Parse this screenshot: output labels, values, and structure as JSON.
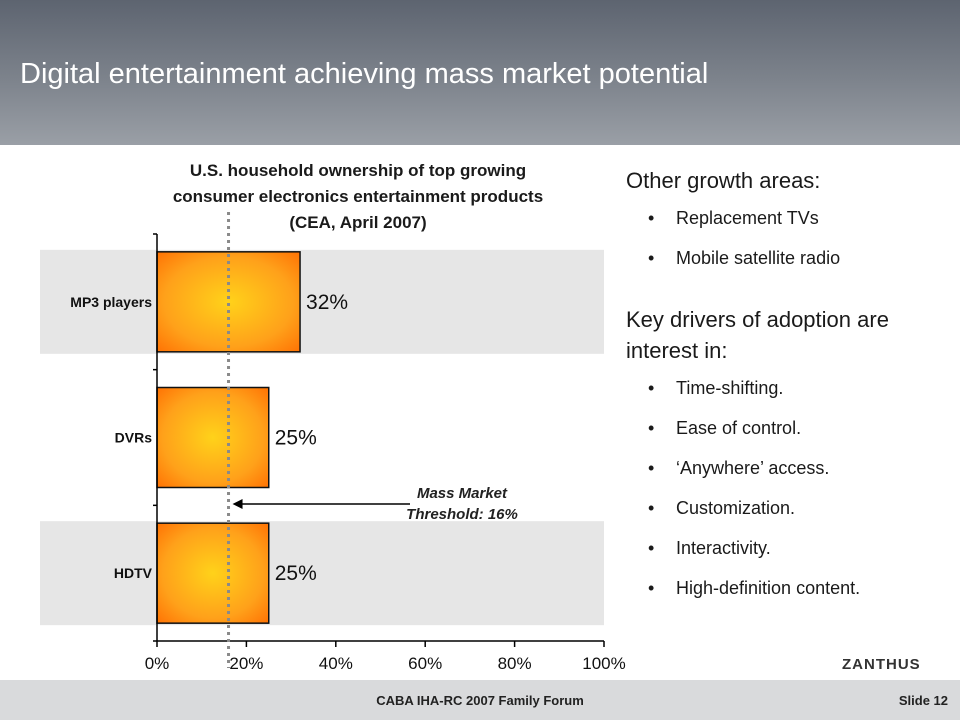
{
  "slide": {
    "title": "Digital entertainment achieving mass market potential",
    "footer_center": "CABA IHA-RC 2007 Family Forum",
    "slide_number": "Slide 12",
    "logo": "ZANTHUS"
  },
  "chart_data": {
    "type": "bar",
    "orientation": "horizontal",
    "title_lines": [
      "U.S. household ownership of top growing",
      "consumer electronics entertainment products",
      "(CEA, April 2007)"
    ],
    "categories": [
      "MP3 players",
      "DVRs",
      "HDTV"
    ],
    "values": [
      32,
      25,
      25
    ],
    "value_labels": [
      "32%",
      "25%",
      "25%"
    ],
    "xlim": [
      0,
      100
    ],
    "x_ticks": [
      0,
      20,
      40,
      60,
      80,
      100
    ],
    "x_tick_labels": [
      "0%",
      "20%",
      "40%",
      "60%",
      "80%",
      "100%"
    ],
    "bar_color_outer": "#ff6a00",
    "bar_color_inner": "#ffd21a",
    "band_color": "#e6e6e6",
    "threshold": {
      "value": 16,
      "label_lines": [
        "Mass Market",
        "Threshold: 16%"
      ]
    }
  },
  "right_panel": {
    "heading1": "Other growth areas:",
    "list1": [
      "Replacement TVs",
      "Mobile satellite radio"
    ],
    "heading2": "Key drivers of adoption are interest in:",
    "list2": [
      "Time-shifting.",
      "Ease of control.",
      "‘Anywhere’ access.",
      "Customization.",
      "Interactivity.",
      "High-definition content."
    ]
  }
}
